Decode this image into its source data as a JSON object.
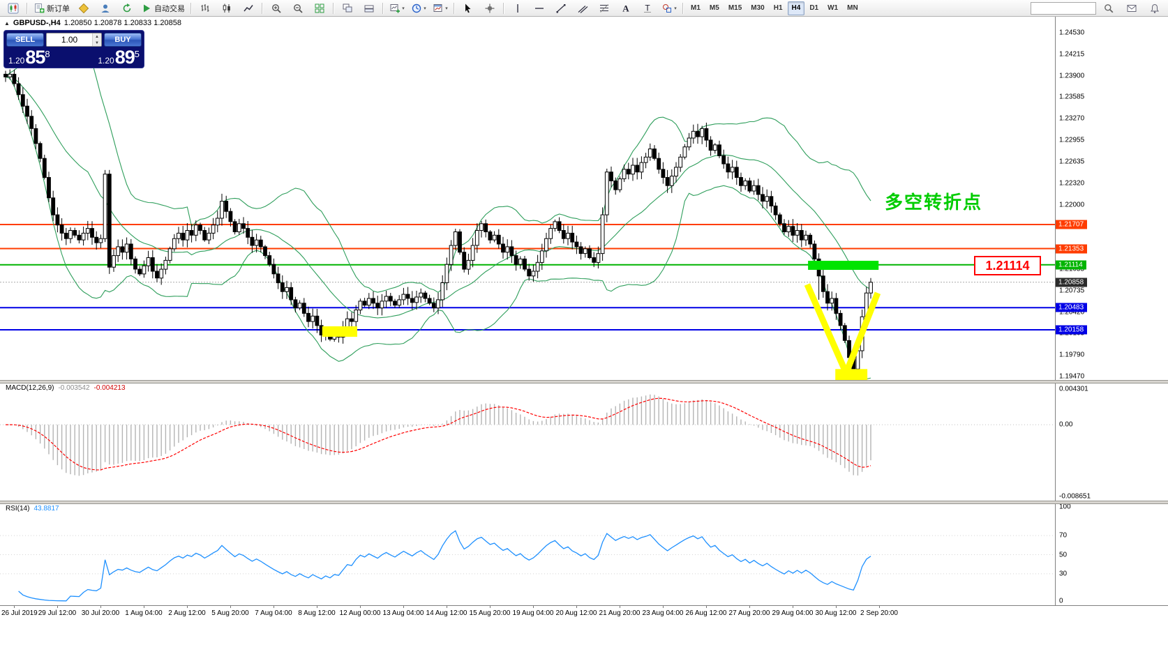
{
  "toolbar": {
    "buttons": [
      {
        "name": "app-chart",
        "icon": "app-chart-icon",
        "sep": true
      },
      {
        "name": "new-order",
        "icon": "new-order-icon",
        "label": "新订单"
      },
      {
        "name": "mql-market",
        "icon": "mql-market-icon"
      },
      {
        "name": "profile",
        "icon": "profile-icon"
      },
      {
        "name": "refresh",
        "icon": "refresh-icon"
      },
      {
        "name": "autotrade",
        "icon": "autotrade-icon",
        "label": "自动交易",
        "sep": true
      },
      {
        "name": "bar-chart",
        "icon": "bar-chart-icon"
      },
      {
        "name": "candle-chart",
        "icon": "candle-chart-icon"
      },
      {
        "name": "line-chart",
        "icon": "line-chart-icon",
        "sep": true
      },
      {
        "name": "zoom-in",
        "icon": "zoom-in-icon"
      },
      {
        "name": "zoom-out",
        "icon": "zoom-out-icon"
      },
      {
        "name": "tile-windows",
        "icon": "tile-windows-icon",
        "sep": true
      },
      {
        "name": "arrange-windows",
        "icon": "arrange-windows-icon"
      },
      {
        "name": "cascade-windows",
        "icon": "cascade-windows-icon",
        "sep": true
      },
      {
        "name": "add-chart",
        "icon": "add-chart-icon",
        "dropdown": true
      },
      {
        "name": "periods",
        "icon": "clock-icon",
        "dropdown": true
      },
      {
        "name": "templates",
        "icon": "template-icon",
        "dropdown": true,
        "sep": true
      },
      {
        "name": "cursor",
        "icon": "cursor-icon"
      },
      {
        "name": "crosshair",
        "icon": "crosshair-icon",
        "sep": true
      },
      {
        "name": "vertical-line",
        "icon": "vline-icon"
      },
      {
        "name": "horizontal-line",
        "icon": "hline-icon"
      },
      {
        "name": "trendline",
        "icon": "trendline-icon"
      },
      {
        "name": "channel",
        "icon": "channel-icon"
      },
      {
        "name": "fibonacci",
        "icon": "fibo-icon"
      },
      {
        "name": "text",
        "icon": "text-icon"
      },
      {
        "name": "text-label",
        "icon": "label-icon"
      },
      {
        "name": "shapes",
        "icon": "shapes-icon",
        "dropdown": true,
        "sep": true
      }
    ],
    "timeframes": [
      "M1",
      "M5",
      "M15",
      "M30",
      "H1",
      "H4",
      "D1",
      "W1",
      "MN"
    ],
    "active_timeframe": "H4",
    "search_placeholder": "",
    "right_icons": [
      {
        "name": "search",
        "icon": "search-icon"
      },
      {
        "name": "envelope",
        "icon": "envelope-icon"
      },
      {
        "name": "bell",
        "icon": "bell-icon"
      }
    ]
  },
  "chart": {
    "title_symbol": "GBPUSD-,H4",
    "title_ohlc": "1.20850 1.20878 1.20833 1.20858",
    "one_click": {
      "sell_label": "SELL",
      "buy_label": "BUY",
      "volume": "1.00",
      "sell_price": {
        "prefix": "1.20",
        "big": "85",
        "sup": "8"
      },
      "buy_price": {
        "prefix": "1.20",
        "big": "89",
        "sup": "5"
      }
    },
    "annotation_text": "多空转折点",
    "annotation_color": "#00CC00",
    "callout_text": "1.21114",
    "callout_color": "#FF0000",
    "levels": [
      {
        "value": 1.21707,
        "label": "1.21707",
        "color": "#FF3C00"
      },
      {
        "value": 1.21353,
        "label": "1.21353",
        "color": "#FF3C00"
      },
      {
        "value": 1.21114,
        "label": "1.21114",
        "color": "#00B400"
      },
      {
        "value": 1.20483,
        "label": "1.20483",
        "color": "#0000E6"
      },
      {
        "value": 1.20158,
        "label": "1.20158",
        "color": "#0000E6"
      }
    ],
    "current_price": {
      "value": 1.20858,
      "label": "1.20858",
      "badge_color": "#2b2b2b"
    },
    "y_axis_labels": [
      "1.24530",
      "1.24215",
      "1.23900",
      "1.23585",
      "1.23270",
      "1.22955",
      "1.22635",
      "1.22320",
      "1.22000",
      "1.21685",
      "1.21370",
      "1.21055",
      "1.20735",
      "1.20420",
      "1.20105",
      "1.19790",
      "1.19470"
    ],
    "x_axis_labels": [
      "26 Jul 2019",
      "29 Jul 12:00",
      "30 Jul 20:00",
      "1 Aug 04:00",
      "2 Aug 12:00",
      "5 Aug 20:00",
      "7 Aug 04:00",
      "8 Aug 12:00",
      "12 Aug 00:00",
      "13 Aug 04:00",
      "14 Aug 12:00",
      "15 Aug 20:00",
      "19 Aug 04:00",
      "20 Aug 12:00",
      "21 Aug 20:00",
      "23 Aug 04:00",
      "26 Aug 12:00",
      "27 Aug 20:00",
      "29 Aug 04:00",
      "30 Aug 12:00",
      "2 Sep 20:00"
    ]
  },
  "chart_data": {
    "type": "candlestick",
    "symbol": "GBPUSD",
    "period": "H4",
    "y_range": {
      "top": 1.2453,
      "bottom": 1.1947
    },
    "closes": [
      1.2388,
      1.2392,
      1.2378,
      1.2362,
      1.2345,
      1.233,
      1.2312,
      1.229,
      1.2268,
      1.224,
      1.221,
      1.2185,
      1.217,
      1.2158,
      1.215,
      1.2162,
      1.2155,
      1.2148,
      1.2158,
      1.2165,
      1.2152,
      1.2144,
      1.215,
      1.2245,
      1.2108,
      1.2125,
      1.2138,
      1.213,
      1.2142,
      1.212,
      1.2105,
      1.2098,
      1.211,
      1.2122,
      1.2102,
      1.2092,
      1.2105,
      1.2118,
      1.2135,
      1.215,
      1.2158,
      1.2148,
      1.2162,
      1.2155,
      1.217,
      1.2162,
      1.2148,
      1.2158,
      1.217,
      1.218,
      1.2205,
      1.219,
      1.2175,
      1.216,
      1.2172,
      1.2165,
      1.2152,
      1.214,
      1.2148,
      1.2138,
      1.2125,
      1.2112,
      1.2098,
      1.2085,
      1.2072,
      1.2078,
      1.206,
      1.2048,
      1.2055,
      1.204,
      1.2028,
      1.2036,
      1.2022,
      1.2008,
      1.2015,
      1.2002,
      1.201,
      1.2005,
      1.2018,
      1.2032,
      1.2028,
      1.2045,
      1.2058,
      1.2052,
      1.2062,
      1.2055,
      1.2048,
      1.2058,
      1.2065,
      1.2058,
      1.2052,
      1.206,
      1.2068,
      1.2062,
      1.2056,
      1.2064,
      1.207,
      1.2062,
      1.2055,
      1.2048,
      1.206,
      1.2085,
      1.2112,
      1.214,
      1.216,
      1.213,
      1.2105,
      1.2118,
      1.214,
      1.2162,
      1.2172,
      1.216,
      1.2148,
      1.2155,
      1.2142,
      1.213,
      1.2138,
      1.2125,
      1.2112,
      1.212,
      1.2105,
      1.2095,
      1.2102,
      1.2115,
      1.2132,
      1.215,
      1.2165,
      1.2175,
      1.2162,
      1.215,
      1.2158,
      1.2145,
      1.2138,
      1.2128,
      1.2135,
      1.2122,
      1.2115,
      1.2128,
      1.2185,
      1.2248,
      1.2235,
      1.2222,
      1.2238,
      1.2252,
      1.2245,
      1.2258,
      1.2248,
      1.2262,
      1.227,
      1.2282,
      1.2268,
      1.2252,
      1.224,
      1.2228,
      1.2242,
      1.2255,
      1.227,
      1.2285,
      1.2298,
      1.2308,
      1.23,
      1.2312,
      1.2295,
      1.228,
      1.2288,
      1.2272,
      1.226,
      1.2248,
      1.2255,
      1.224,
      1.2228,
      1.2235,
      1.222,
      1.2228,
      1.2215,
      1.2205,
      1.2212,
      1.2198,
      1.2185,
      1.2172,
      1.216,
      1.2168,
      1.2155,
      1.2162,
      1.2148,
      1.2155,
      1.2142,
      1.212,
      1.2095,
      1.2072,
      1.2055,
      1.2062,
      1.204,
      1.2022,
      1.2,
      1.1975,
      1.1958,
      1.1985,
      1.2035,
      1.207,
      1.20858
    ],
    "high_overrides": {
      "1": 1.2399,
      "23": 1.2251,
      "50": 1.2216,
      "110": 1.2176,
      "139": 1.2253,
      "149": 1.229,
      "161": 1.2316
    },
    "low_overrides": {
      "24": 1.2098,
      "35": 1.2086,
      "66": 1.2052,
      "75": 1.1999,
      "77": 1.1997,
      "121": 1.2088,
      "136": 1.2108,
      "188": 1.206,
      "196": 1.1949
    },
    "indicators": {
      "bollinger_period": 20,
      "bollinger_dev": 2,
      "macd": [
        12,
        26,
        9
      ],
      "rsi": 14
    }
  },
  "macd_panel": {
    "label": "MACD(12,26,9)",
    "value_main": "-0.003542",
    "value_signal": "-0.004213",
    "max": 0.004301,
    "min": -0.008651,
    "scale": [
      {
        "text": "0.004301",
        "v": 0.004301
      },
      {
        "text": "0.00",
        "v": 0
      },
      {
        "text": "-0.008651",
        "v": -0.008651
      }
    ]
  },
  "rsi_panel": {
    "label": "RSI(14)",
    "value": "43.8817",
    "scale": [
      {
        "text": "100",
        "v": 100
      },
      {
        "text": "70",
        "v": 70
      },
      {
        "text": "50",
        "v": 50
      },
      {
        "text": "30",
        "v": 30
      },
      {
        "text": "0",
        "v": 0
      }
    ]
  },
  "drawings": {
    "turning_zone": {
      "bar_start": 185.5,
      "bar_end": 201.8,
      "price_top": 1.21174,
      "price_bottom": 1.21041,
      "color": "#00E400"
    },
    "v_shape": {
      "points_bar_price": [
        [
          185.3,
          1.20825
        ],
        [
          194.3,
          1.1952
        ],
        [
          201.6,
          1.207
        ]
      ],
      "color": "#FFFF00",
      "width": 9
    },
    "low_box_aug": {
      "bar_start": 73.2,
      "bar_end": 81.3,
      "price_top": 1.20209,
      "price_bottom": 1.20055,
      "color": "#FFFF00"
    },
    "low_box_sep": {
      "bar_start": 191.8,
      "bar_end": 199.2,
      "price_top": 1.1958,
      "price_bottom": 1.194,
      "color": "#FFFF00"
    }
  },
  "colors": {
    "bollinger": "#2E9E5B",
    "candle_up": "#FFFFFF",
    "candle_down": "#000000",
    "candle_border": "#000000",
    "macd_hist": "#b4b4b4",
    "macd_signal": "#FF0000",
    "rsi_line": "#1E90FF",
    "current_line": "#aaaaaa"
  }
}
